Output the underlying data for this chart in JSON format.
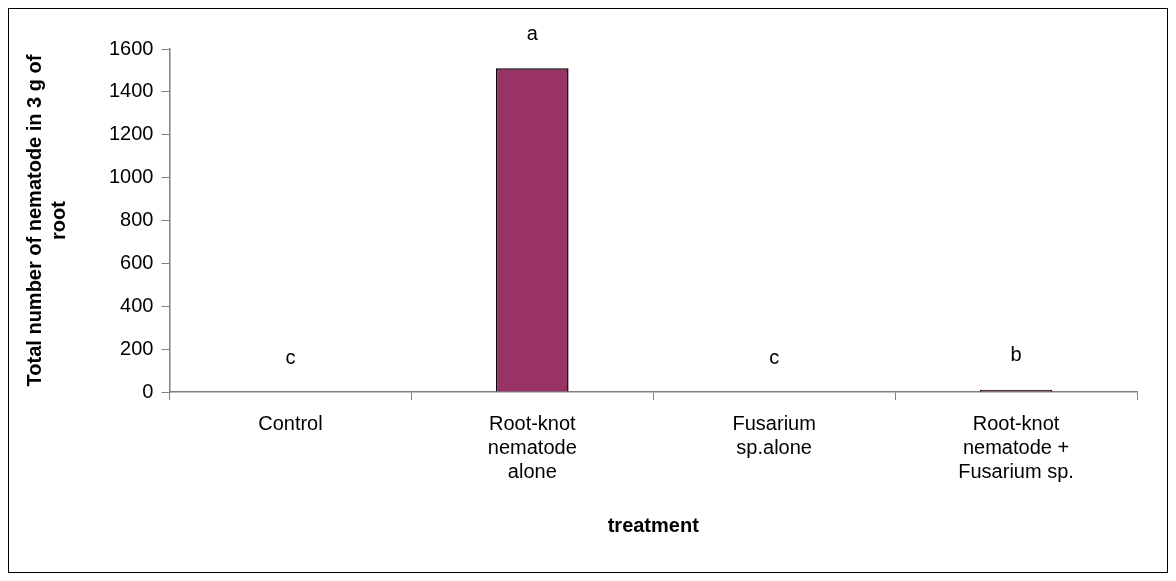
{
  "chart_data": {
    "type": "bar",
    "xlabel": "treatment",
    "ylabel": "Total number of nematode in 3 g of root",
    "categories": [
      "Control",
      "Root-knot nematode alone",
      "Fusarium sp.alone",
      "Root-knot nematode + Fusarium sp."
    ],
    "values": [
      0,
      1510,
      0,
      10
    ],
    "color": "#993366",
    "ylim": [
      0,
      1600
    ],
    "yticks": [
      0,
      200,
      400,
      600,
      800,
      1000,
      1200,
      1400,
      1600
    ],
    "grid": false,
    "legend": false,
    "annotations": [
      {
        "text": "c",
        "x": "Control",
        "y": 0
      },
      {
        "text": "a",
        "x": "Root-knot nematode alone",
        "y": 1510
      },
      {
        "text": "c",
        "x": "Fusarium sp.alone",
        "y": 0
      },
      {
        "text": "b",
        "x": "Root-knot nematode + Fusarium sp.",
        "y": 10
      }
    ]
  }
}
